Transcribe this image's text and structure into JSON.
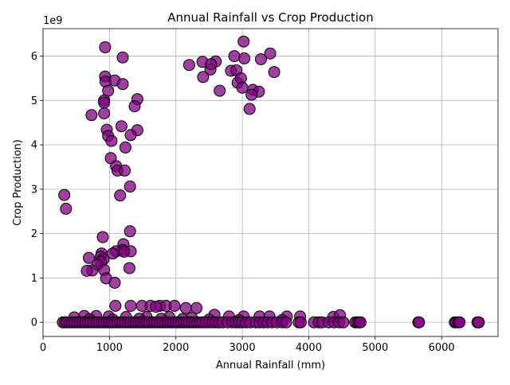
{
  "chart_data": {
    "type": "scatter",
    "title": "Annual Rainfall vs Crop Production",
    "xlabel": "Annual Rainfall (mm)",
    "ylabel": "Crop Production)",
    "y_scale_label": "1e9",
    "xlim": [
      0,
      6850
    ],
    "ylim": [
      -0.32,
      6.62
    ],
    "xticks": [
      0,
      1000,
      2000,
      3000,
      4000,
      5000,
      6000
    ],
    "yticks": [
      0,
      1,
      2,
      3,
      4,
      5,
      6
    ],
    "grid": true,
    "marker_color": "#800080",
    "marker_opacity": 0.75,
    "points": [
      [
        935,
        6.2
      ],
      [
        1200,
        5.97
      ],
      [
        3020,
        6.33
      ],
      [
        3420,
        6.06
      ],
      [
        2200,
        5.8
      ],
      [
        2400,
        5.87
      ],
      [
        2600,
        5.88
      ],
      [
        2880,
        6.0
      ],
      [
        3030,
        5.95
      ],
      [
        3280,
        5.93
      ],
      [
        2520,
        5.7
      ],
      [
        2530,
        5.82
      ],
      [
        2830,
        5.67
      ],
      [
        2910,
        5.68
      ],
      [
        3480,
        5.64
      ],
      [
        2410,
        5.53
      ],
      [
        2930,
        5.4
      ],
      [
        2980,
        5.5
      ],
      [
        3000,
        5.29
      ],
      [
        3160,
        5.24
      ],
      [
        3250,
        5.2
      ],
      [
        3140,
        5.13
      ],
      [
        2660,
        5.22
      ],
      [
        3110,
        4.81
      ],
      [
        935,
        5.54
      ],
      [
        940,
        5.43
      ],
      [
        1080,
        5.45
      ],
      [
        1200,
        5.37
      ],
      [
        980,
        5.22
      ],
      [
        920,
        5.0
      ],
      [
        1420,
        5.03
      ],
      [
        1380,
        4.87
      ],
      [
        920,
        4.95
      ],
      [
        730,
        4.67
      ],
      [
        920,
        4.71
      ],
      [
        1180,
        4.42
      ],
      [
        960,
        4.34
      ],
      [
        1420,
        4.33
      ],
      [
        980,
        4.2
      ],
      [
        1320,
        4.22
      ],
      [
        1030,
        4.09
      ],
      [
        1240,
        3.94
      ],
      [
        1020,
        3.7
      ],
      [
        1100,
        3.52
      ],
      [
        1120,
        3.42
      ],
      [
        1230,
        3.42
      ],
      [
        1310,
        3.06
      ],
      [
        320,
        2.87
      ],
      [
        1160,
        2.86
      ],
      [
        345,
        2.56
      ],
      [
        1310,
        2.05
      ],
      [
        900,
        1.92
      ],
      [
        1210,
        1.76
      ],
      [
        1200,
        1.63
      ],
      [
        1100,
        1.6
      ],
      [
        1320,
        1.6
      ],
      [
        880,
        1.55
      ],
      [
        870,
        1.48
      ],
      [
        1220,
        1.59
      ],
      [
        1050,
        1.55
      ],
      [
        690,
        1.45
      ],
      [
        910,
        1.42
      ],
      [
        870,
        1.37
      ],
      [
        820,
        1.3
      ],
      [
        920,
        1.18
      ],
      [
        740,
        1.17
      ],
      [
        660,
        1.16
      ],
      [
        1300,
        1.22
      ],
      [
        950,
        0.99
      ],
      [
        1080,
        0.89
      ],
      [
        1090,
        0.37
      ],
      [
        1320,
        0.37
      ],
      [
        1490,
        0.37
      ],
      [
        1620,
        0.37
      ],
      [
        1760,
        0.37
      ],
      [
        1850,
        0.37
      ],
      [
        1980,
        0.37
      ],
      [
        2150,
        0.32
      ],
      [
        2310,
        0.32
      ],
      [
        1700,
        0.35
      ],
      [
        2240,
        0.1
      ],
      [
        2580,
        0.17
      ],
      [
        2800,
        0.13
      ],
      [
        3020,
        0.13
      ],
      [
        3260,
        0.13
      ],
      [
        3410,
        0.13
      ],
      [
        3670,
        0.13
      ],
      [
        3870,
        0.13
      ],
      [
        4370,
        0.12
      ],
      [
        4470,
        0.16
      ],
      [
        620,
        0.14
      ],
      [
        800,
        0.14
      ],
      [
        990,
        0.13
      ],
      [
        1250,
        0.12
      ],
      [
        1560,
        0.12
      ],
      [
        1900,
        0.12
      ],
      [
        470,
        0.11
      ],
      [
        700,
        0.07
      ],
      [
        1050,
        0.06
      ],
      [
        1450,
        0.08
      ],
      [
        1780,
        0.08
      ],
      [
        2100,
        0.07
      ],
      [
        2500,
        0.06
      ],
      [
        2950,
        0.05
      ],
      [
        3600,
        0.05
      ],
      [
        300,
        0.0
      ],
      [
        330,
        0.0
      ],
      [
        360,
        0.0
      ],
      [
        400,
        0.0
      ],
      [
        440,
        0.0
      ],
      [
        480,
        0.0
      ],
      [
        520,
        0.0
      ],
      [
        560,
        0.0
      ],
      [
        600,
        0.0
      ],
      [
        640,
        0.0
      ],
      [
        680,
        0.0
      ],
      [
        720,
        0.0
      ],
      [
        760,
        0.0
      ],
      [
        800,
        0.0
      ],
      [
        840,
        0.0
      ],
      [
        880,
        0.0
      ],
      [
        920,
        0.0
      ],
      [
        960,
        0.0
      ],
      [
        1000,
        0.0
      ],
      [
        1040,
        0.0
      ],
      [
        1080,
        0.0
      ],
      [
        1120,
        0.0
      ],
      [
        1160,
        0.0
      ],
      [
        1200,
        0.0
      ],
      [
        1240,
        0.0
      ],
      [
        1280,
        0.0
      ],
      [
        1320,
        0.0
      ],
      [
        1360,
        0.0
      ],
      [
        1400,
        0.0
      ],
      [
        1440,
        0.0
      ],
      [
        1480,
        0.0
      ],
      [
        1520,
        0.0
      ],
      [
        1560,
        0.0
      ],
      [
        1600,
        0.0
      ],
      [
        1640,
        0.0
      ],
      [
        1680,
        0.0
      ],
      [
        1720,
        0.0
      ],
      [
        1760,
        0.0
      ],
      [
        1800,
        0.0
      ],
      [
        1840,
        0.0
      ],
      [
        1880,
        0.0
      ],
      [
        1920,
        0.0
      ],
      [
        1960,
        0.0
      ],
      [
        2000,
        0.0
      ],
      [
        2040,
        0.0
      ],
      [
        2080,
        0.0
      ],
      [
        2120,
        0.0
      ],
      [
        2160,
        0.0
      ],
      [
        2200,
        0.0
      ],
      [
        2240,
        0.0
      ],
      [
        2280,
        0.0
      ],
      [
        2320,
        0.0
      ],
      [
        2360,
        0.0
      ],
      [
        2400,
        0.0
      ],
      [
        2450,
        0.0
      ],
      [
        2500,
        0.0
      ],
      [
        2550,
        0.0
      ],
      [
        2600,
        0.0
      ],
      [
        2650,
        0.0
      ],
      [
        2700,
        0.0
      ],
      [
        2780,
        0.0
      ],
      [
        2850,
        0.0
      ],
      [
        2900,
        0.0
      ],
      [
        2950,
        0.0
      ],
      [
        3000,
        0.0
      ],
      [
        3060,
        0.0
      ],
      [
        3120,
        0.0
      ],
      [
        3200,
        0.0
      ],
      [
        3260,
        0.0
      ],
      [
        3320,
        0.0
      ],
      [
        3380,
        0.0
      ],
      [
        3450,
        0.0
      ],
      [
        3520,
        0.0
      ],
      [
        3600,
        0.0
      ],
      [
        3660,
        0.0
      ],
      [
        3850,
        0.0
      ],
      [
        3880,
        0.0
      ],
      [
        4080,
        0.0
      ],
      [
        4150,
        0.0
      ],
      [
        4200,
        0.0
      ],
      [
        4300,
        0.0
      ],
      [
        4380,
        0.0
      ],
      [
        4460,
        0.0
      ],
      [
        4520,
        0.0
      ],
      [
        4700,
        0.0
      ],
      [
        4730,
        0.0
      ],
      [
        4760,
        0.0
      ],
      [
        4780,
        0.0
      ],
      [
        5650,
        0.0
      ],
      [
        5660,
        0.0
      ],
      [
        6200,
        0.0
      ],
      [
        6220,
        0.0
      ],
      [
        6250,
        0.0
      ],
      [
        6270,
        0.0
      ],
      [
        6540,
        0.0
      ],
      [
        6560,
        0.0
      ]
    ]
  }
}
